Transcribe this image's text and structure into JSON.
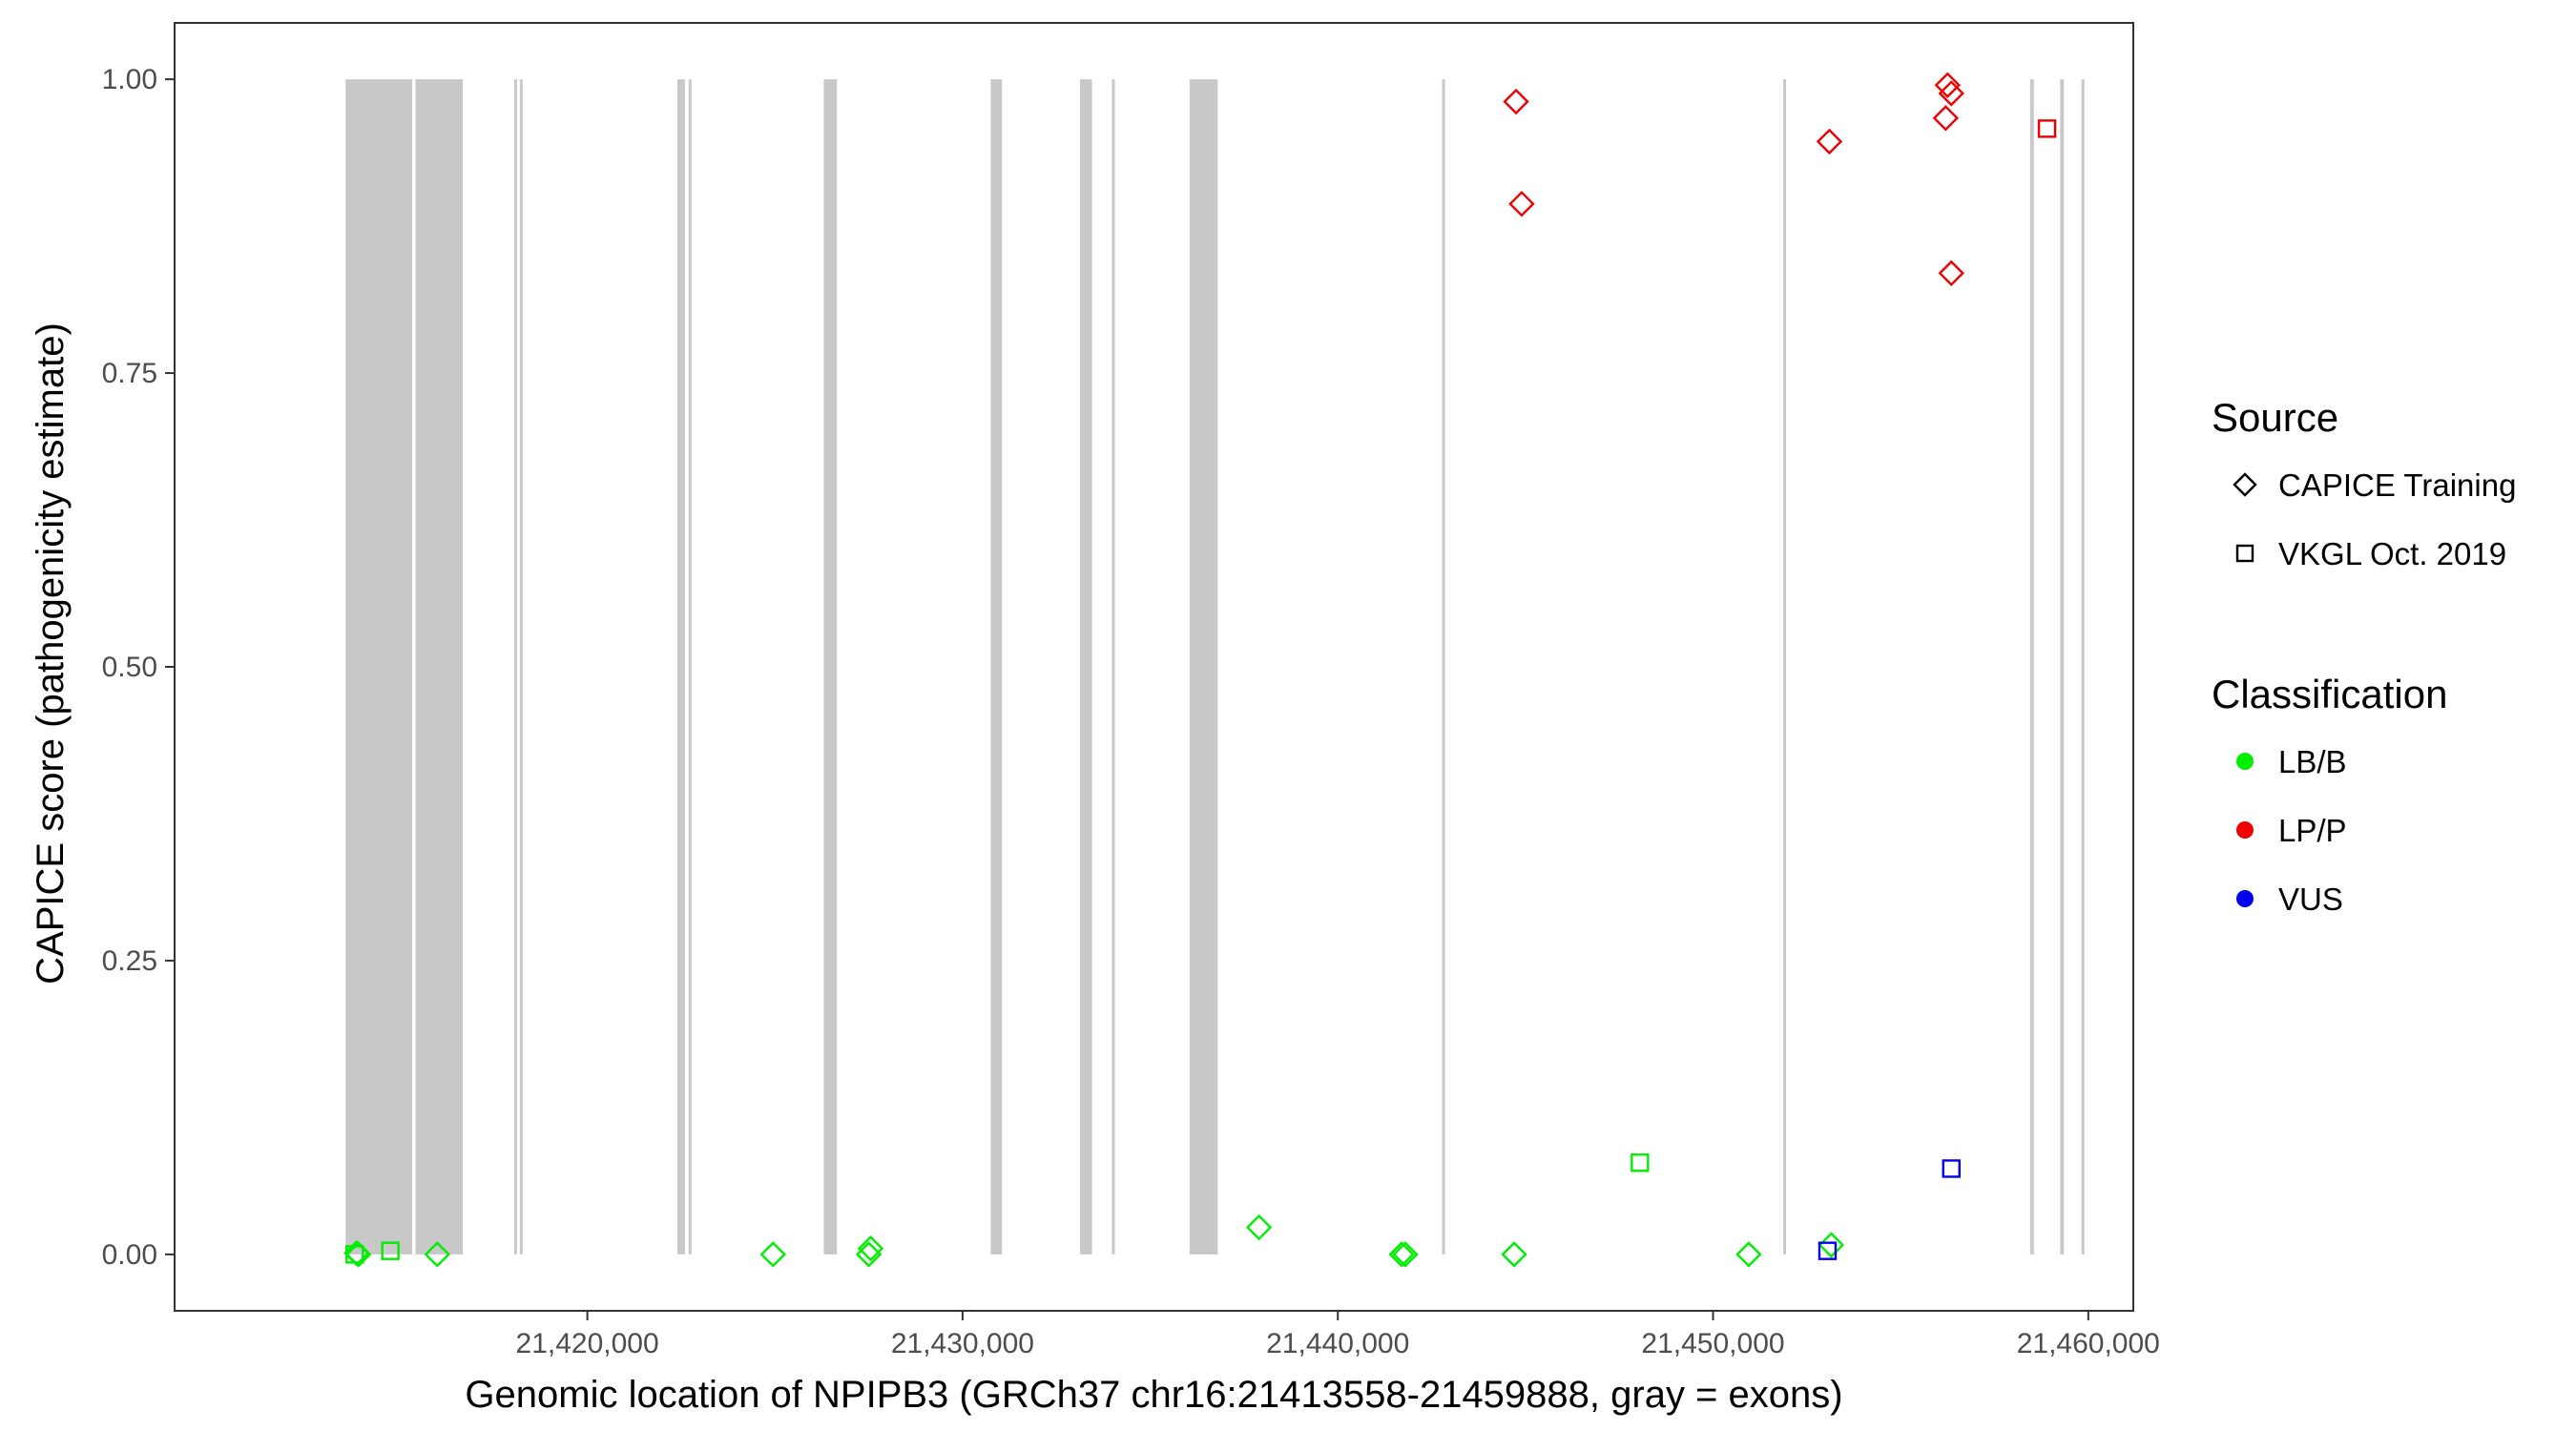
{
  "chart_data": {
    "type": "scatter",
    "title": "",
    "xlabel": "Genomic location of NPIPB3 (GRCh37 chr16:21413558-21459888, gray = exons)",
    "ylabel": "CAPICE score (pathogenicity estimate)",
    "xlim": [
      21409000,
      21461200
    ],
    "ylim": [
      -0.048,
      1.048
    ],
    "x_ticks": [
      21420000,
      21430000,
      21440000,
      21450000,
      21460000
    ],
    "x_tick_labels": [
      "21,420,000",
      "21,430,000",
      "21,440,000",
      "21,450,000",
      "21,460,000"
    ],
    "y_ticks": [
      0,
      0.25,
      0.5,
      0.75,
      1.0
    ],
    "y_tick_labels": [
      "0.00",
      "0.25",
      "0.50",
      "0.75",
      "1.00"
    ],
    "grid": false,
    "legend_placement": "right",
    "exons": [
      {
        "start": 21413558,
        "end": 21415330
      },
      {
        "start": 21415420,
        "end": 21416680
      },
      {
        "start": 21418050,
        "end": 21418080
      },
      {
        "start": 21418200,
        "end": 21418230
      },
      {
        "start": 21422400,
        "end": 21422600
      },
      {
        "start": 21422700,
        "end": 21422760
      },
      {
        "start": 21426300,
        "end": 21426650
      },
      {
        "start": 21430750,
        "end": 21431050
      },
      {
        "start": 21433130,
        "end": 21433450
      },
      {
        "start": 21433980,
        "end": 21434030
      },
      {
        "start": 21436050,
        "end": 21436800
      },
      {
        "start": 21442780,
        "end": 21442820
      },
      {
        "start": 21451870,
        "end": 21451910
      },
      {
        "start": 21458450,
        "end": 21458550
      },
      {
        "start": 21459250,
        "end": 21459350
      },
      {
        "start": 21459820,
        "end": 21459888
      }
    ],
    "legend": {
      "source": {
        "title": "Source",
        "items": [
          {
            "label": "CAPICE Training",
            "shape": "diamond"
          },
          {
            "label": "VKGL Oct. 2019",
            "shape": "square"
          }
        ]
      },
      "classification": {
        "title": "Classification",
        "items": [
          {
            "label": "LB/B",
            "color": "#00ee00"
          },
          {
            "label": "LP/P",
            "color": "#ee0000"
          },
          {
            "label": "VUS",
            "color": "#0000ee"
          }
        ]
      }
    },
    "colors": {
      "LB/B": "#00ee00",
      "LP/P": "#ee0000",
      "VUS": "#0000ee",
      "exon": "#c8c8c8"
    },
    "points": [
      {
        "x": 21413850,
        "y": 0.001,
        "source": "CAPICE Training",
        "classification": "LB/B"
      },
      {
        "x": 21413900,
        "y": 0.0,
        "source": "CAPICE Training",
        "classification": "LB/B"
      },
      {
        "x": 21413800,
        "y": 0.0,
        "source": "VKGL Oct. 2019",
        "classification": "LB/B"
      },
      {
        "x": 21414750,
        "y": 0.003,
        "source": "VKGL Oct. 2019",
        "classification": "LB/B"
      },
      {
        "x": 21416000,
        "y": 0.0,
        "source": "CAPICE Training",
        "classification": "LB/B"
      },
      {
        "x": 21424950,
        "y": 0.0,
        "source": "CAPICE Training",
        "classification": "LB/B"
      },
      {
        "x": 21427550,
        "y": 0.005,
        "source": "CAPICE Training",
        "classification": "LB/B"
      },
      {
        "x": 21427500,
        "y": 0.0,
        "source": "CAPICE Training",
        "classification": "LB/B"
      },
      {
        "x": 21437900,
        "y": 0.023,
        "source": "CAPICE Training",
        "classification": "LB/B"
      },
      {
        "x": 21441700,
        "y": 0.0,
        "source": "CAPICE Training",
        "classification": "LB/B"
      },
      {
        "x": 21441800,
        "y": 0.0,
        "source": "CAPICE Training",
        "classification": "LB/B"
      },
      {
        "x": 21444700,
        "y": 0.0,
        "source": "CAPICE Training",
        "classification": "LB/B"
      },
      {
        "x": 21448050,
        "y": 0.078,
        "source": "VKGL Oct. 2019",
        "classification": "LB/B"
      },
      {
        "x": 21450950,
        "y": 0.0,
        "source": "CAPICE Training",
        "classification": "LB/B"
      },
      {
        "x": 21453150,
        "y": 0.008,
        "source": "CAPICE Training",
        "classification": "LB/B"
      },
      {
        "x": 21453050,
        "y": 0.003,
        "source": "VKGL Oct. 2019",
        "classification": "VUS"
      },
      {
        "x": 21456350,
        "y": 0.073,
        "source": "VKGL Oct. 2019",
        "classification": "VUS"
      },
      {
        "x": 21444750,
        "y": 0.981,
        "source": "CAPICE Training",
        "classification": "LP/P"
      },
      {
        "x": 21444900,
        "y": 0.894,
        "source": "CAPICE Training",
        "classification": "LP/P"
      },
      {
        "x": 21453100,
        "y": 0.947,
        "source": "CAPICE Training",
        "classification": "LP/P"
      },
      {
        "x": 21456250,
        "y": 0.995,
        "source": "CAPICE Training",
        "classification": "LP/P"
      },
      {
        "x": 21456350,
        "y": 0.988,
        "source": "CAPICE Training",
        "classification": "LP/P"
      },
      {
        "x": 21456200,
        "y": 0.967,
        "source": "CAPICE Training",
        "classification": "LP/P"
      },
      {
        "x": 21456350,
        "y": 0.835,
        "source": "CAPICE Training",
        "classification": "LP/P"
      },
      {
        "x": 21458900,
        "y": 0.958,
        "source": "VKGL Oct. 2019",
        "classification": "LP/P"
      }
    ]
  }
}
